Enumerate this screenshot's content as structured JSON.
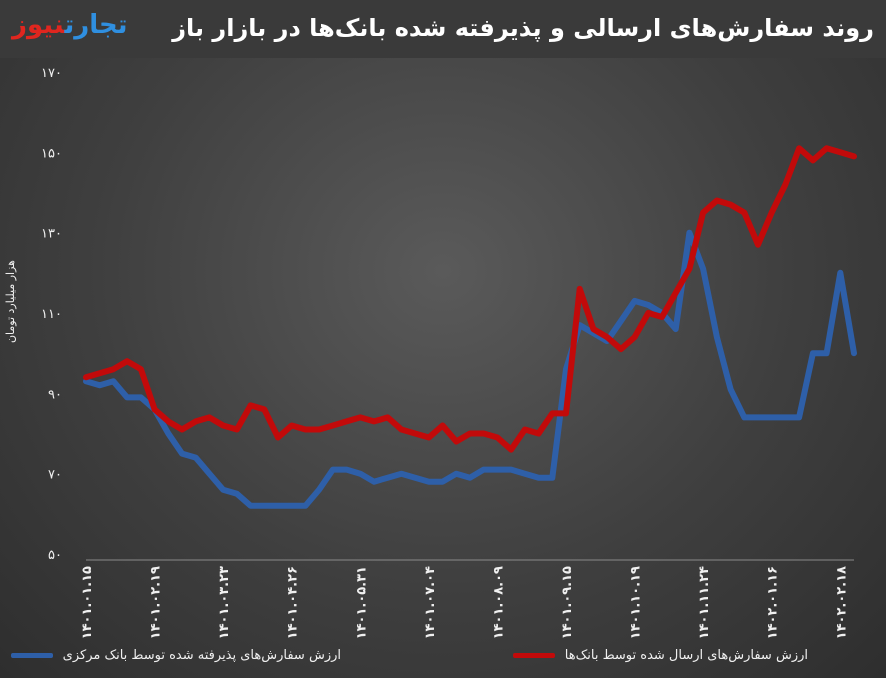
{
  "header": {
    "title": "روند سفارش‌های ارسالی و پذیرفته شده بانک‌ها در بازار باز",
    "logo_part1": "تجارت",
    "logo_part2": "نیوز"
  },
  "legend": {
    "items": [
      {
        "label": "ارزش سفارش‌های پذیرفته شده توسط بانک مرکزی",
        "color": "#2e5fa8"
      },
      {
        "label": "ارزش سفارش‌های ارسال شده توسط بانک‌ها",
        "color": "#c20a0a"
      }
    ]
  },
  "chart_data": {
    "type": "line",
    "ylabel": "هزار میلیارد تومان",
    "ylim": [
      50,
      170
    ],
    "yticks": [
      "۵۰",
      "۷۰",
      "۹۰",
      "۱۱۰",
      "۱۳۰",
      "۱۵۰",
      "۱۷۰"
    ],
    "yticks_values": [
      50,
      70,
      90,
      110,
      130,
      150,
      170
    ],
    "xtick_labels": [
      "۱۴۰۱.۰۱.۱۵",
      "۱۴۰۱.۰۲.۱۹",
      "۱۴۰۱.۰۳.۲۳",
      "۱۴۰۱.۰۴.۲۶",
      "۱۴۰۱.۰۵.۳۱",
      "۱۴۰۱.۰۷.۰۴",
      "۱۴۰۱.۰۸.۰۹",
      "۱۴۰۱.۰۹.۱۵",
      "۱۴۰۱.۱۰.۱۹",
      "۱۴۰۱.۱۱.۲۴",
      "۱۴۰۲.۰۱.۱۶",
      "۱۴۰۲.۰۲.۱۸"
    ],
    "xtick_positions": [
      0,
      5,
      10,
      15,
      20,
      25,
      30,
      35,
      40,
      45,
      50,
      55
    ],
    "series": [
      {
        "name": "ارزش سفارش‌های ارسال شده توسط بانک‌ها",
        "color": "#c20a0a",
        "values": [
          94,
          95,
          96,
          98,
          96,
          86,
          83,
          81,
          83,
          84,
          82,
          81,
          87,
          86,
          79,
          82,
          81,
          81,
          82,
          83,
          84,
          83,
          84,
          81,
          80,
          79,
          82,
          78,
          80,
          80,
          79,
          76,
          81,
          80,
          85,
          85,
          116,
          106,
          104,
          101,
          104,
          110,
          109,
          115,
          121,
          135,
          138,
          137,
          135,
          127,
          135,
          142,
          151,
          148,
          151,
          150,
          149
        ]
      },
      {
        "name": "ارزش سفارش‌های پذیرفته شده توسط بانک مرکزی",
        "color": "#2e5fa8",
        "values": [
          93,
          92,
          93,
          89,
          89,
          86,
          80,
          75,
          74,
          70,
          66,
          65,
          62,
          62,
          62,
          62,
          62,
          66,
          71,
          71,
          70,
          68,
          69,
          70,
          69,
          68,
          68,
          70,
          69,
          71,
          71,
          71,
          70,
          69,
          69,
          96,
          107,
          105,
          103,
          108,
          113,
          112,
          110,
          106,
          130,
          121,
          104,
          91,
          84,
          84,
          84,
          84,
          84,
          100,
          100,
          120,
          100
        ]
      }
    ]
  }
}
